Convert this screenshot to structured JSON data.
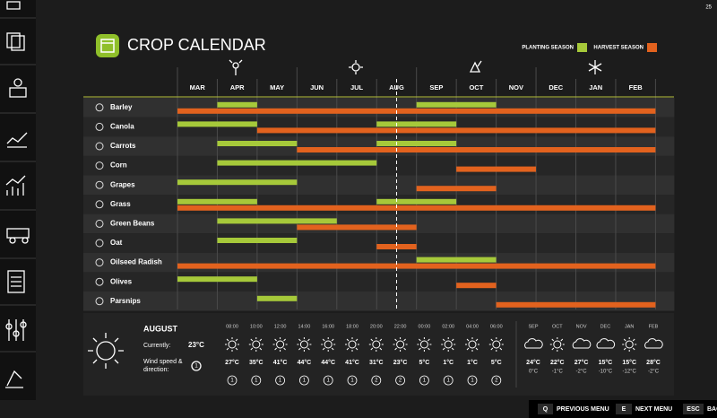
{
  "corner_label": "25",
  "header": {
    "title": "CROP CALENDAR",
    "legend": {
      "planting": "PLANTING SEASON",
      "harvest": "HARVEST SEASON"
    }
  },
  "calendar": {
    "months": [
      "MAR",
      "APR",
      "MAY",
      "JUN",
      "JUL",
      "AUG",
      "SEP",
      "OCT",
      "NOV",
      "DEC",
      "JAN",
      "FEB"
    ],
    "today": 5.5,
    "planting_color": "#a6c93a",
    "harvest_color": "#e2621e",
    "crops": [
      {
        "name": "Barley",
        "planting": [
          [
            1,
            2
          ],
          [
            6,
            8
          ]
        ],
        "harvest": [
          [
            0,
            12
          ]
        ]
      },
      {
        "name": "Canola",
        "planting": [
          [
            0,
            2
          ],
          [
            5,
            7
          ]
        ],
        "harvest": [
          [
            2,
            12
          ]
        ]
      },
      {
        "name": "Carrots",
        "planting": [
          [
            1,
            3
          ],
          [
            5,
            7
          ]
        ],
        "harvest": [
          [
            3,
            12
          ]
        ]
      },
      {
        "name": "Corn",
        "planting": [
          [
            1,
            5
          ]
        ],
        "harvest": [
          [
            7,
            9
          ]
        ]
      },
      {
        "name": "Grapes",
        "planting": [
          [
            0,
            3
          ]
        ],
        "harvest": [
          [
            6,
            8
          ]
        ]
      },
      {
        "name": "Grass",
        "planting": [
          [
            0,
            2
          ],
          [
            5,
            7
          ]
        ],
        "harvest": [
          [
            0,
            12
          ]
        ]
      },
      {
        "name": "Green Beans",
        "planting": [
          [
            1,
            4
          ]
        ],
        "harvest": [
          [
            3,
            6
          ]
        ]
      },
      {
        "name": "Oat",
        "planting": [
          [
            1,
            3
          ]
        ],
        "harvest": [
          [
            5,
            6
          ]
        ]
      },
      {
        "name": "Oilseed Radish",
        "planting": [
          [
            6,
            8
          ]
        ],
        "harvest": [
          [
            0,
            12
          ]
        ]
      },
      {
        "name": "Olives",
        "planting": [
          [
            0,
            2
          ]
        ],
        "harvest": [
          [
            7,
            8
          ]
        ]
      },
      {
        "name": "Parsnips",
        "planting": [
          [
            2,
            3
          ]
        ],
        "harvest": [
          [
            8,
            12
          ]
        ]
      }
    ]
  },
  "weather": {
    "month": "AUGUST",
    "current_label": "Currently:",
    "current_temp": "23°C",
    "wind_label": [
      "Wind speed &",
      "direction:"
    ],
    "wind_now": "1",
    "hourly": {
      "times": [
        "08:00",
        "10:00",
        "12:00",
        "14:00",
        "16:00",
        "18:00",
        "20:00",
        "22:00",
        "00:00",
        "02:00",
        "04:00",
        "06:00"
      ],
      "temps": [
        "27°C",
        "35°C",
        "41°C",
        "44°C",
        "44°C",
        "41°C",
        "31°C",
        "23°C",
        "5°C",
        "1°C",
        "1°C",
        "5°C"
      ],
      "wind": [
        "1",
        "1",
        "1",
        "1",
        "1",
        "1",
        "2",
        "2",
        "1",
        "1",
        "1",
        "2"
      ]
    },
    "monthly": {
      "months": [
        "SEP",
        "OCT",
        "NOV",
        "DEC",
        "JAN",
        "FEB"
      ],
      "highs": [
        "24°C",
        "22°C",
        "27°C",
        "15°C",
        "15°C",
        "28°C"
      ],
      "lows": [
        "0°C",
        "-1°C",
        "-2°C",
        "-10°C",
        "-12°C",
        "-2°C"
      ]
    }
  },
  "footer": [
    {
      "key": "Q",
      "label": "PREVIOUS MENU"
    },
    {
      "key": "E",
      "label": "NEXT MENU"
    },
    {
      "key": "ESC",
      "label": "BAC"
    }
  ]
}
